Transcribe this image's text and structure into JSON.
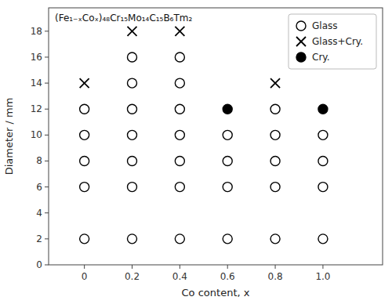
{
  "chart_data": {
    "type": "scatter",
    "xlabel": "Co content, x",
    "ylabel": "Diameter / mm",
    "annotations": [
      "(Fe₁₋ₓCoₓ)₄₈Cr₁₅Mo₁₄C₁₅B₆Tm₂"
    ],
    "xlim": [
      -0.15,
      1.25
    ],
    "ylim": [
      0,
      19.8
    ],
    "xticks": [
      0,
      0.2,
      0.4,
      0.6,
      0.8,
      {
        "value": 1.0,
        "label": "1.0"
      }
    ],
    "yticks": [
      0,
      2,
      4,
      6,
      8,
      10,
      12,
      14,
      16,
      18
    ],
    "grid": false,
    "legend": "upper-right",
    "series": [
      {
        "name": "Glass",
        "color": "#000000",
        "marker": "open-circle",
        "x": [
          0,
          0,
          0,
          0,
          0,
          0.2,
          0.2,
          0.2,
          0.2,
          0.2,
          0.2,
          0.2,
          0.4,
          0.4,
          0.4,
          0.4,
          0.4,
          0.4,
          0.4,
          0.6,
          0.6,
          0.6,
          0.6,
          0.8,
          0.8,
          0.8,
          0.8,
          0.8,
          1.0,
          1.0,
          1.0,
          1.0
        ],
        "values": [
          2,
          6,
          8,
          10,
          12,
          2,
          6,
          8,
          10,
          12,
          14,
          16,
          2,
          6,
          8,
          10,
          12,
          14,
          16,
          2,
          6,
          8,
          10,
          2,
          6,
          8,
          10,
          12,
          2,
          6,
          8,
          10
        ]
      },
      {
        "name": "Glass+Cry.",
        "color": "#000000",
        "marker": "x",
        "x": [
          0,
          0.2,
          0.4,
          0.8
        ],
        "values": [
          14,
          18,
          18,
          14
        ]
      },
      {
        "name": "Cry.",
        "color": "#000000",
        "marker": "circle",
        "x": [
          0.6,
          1.0
        ],
        "values": [
          12,
          12
        ]
      }
    ]
  }
}
